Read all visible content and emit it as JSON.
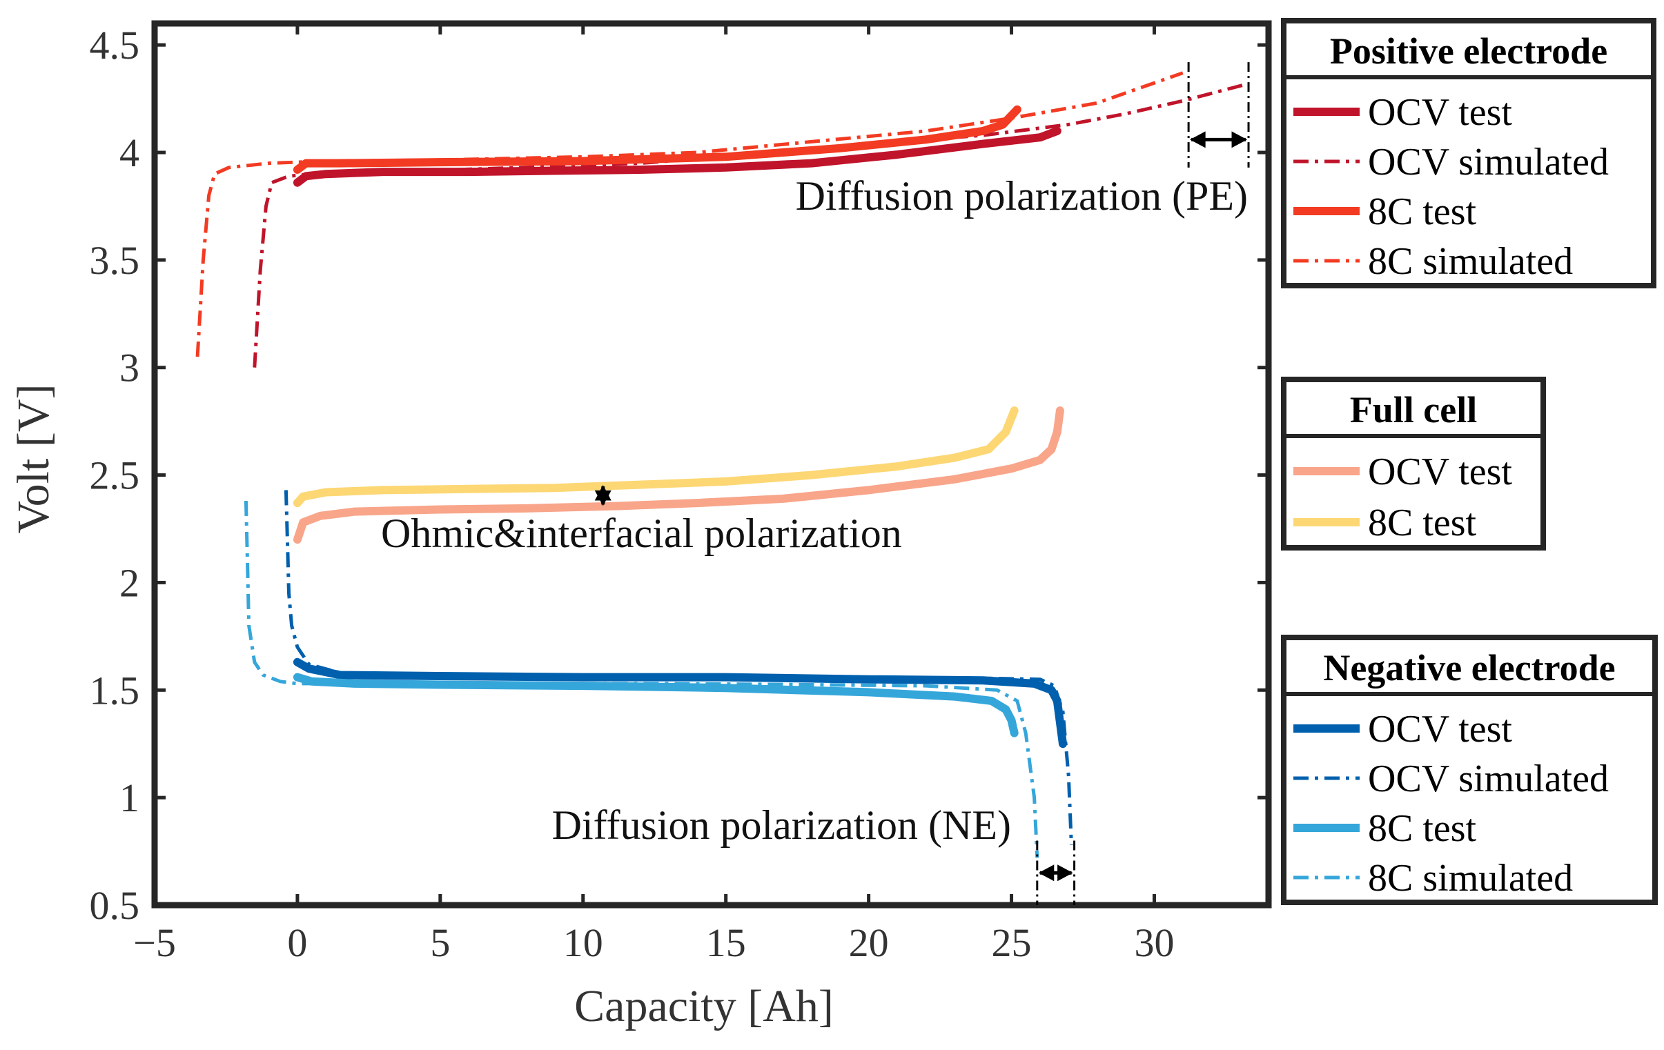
{
  "chart_data": {
    "type": "line",
    "xlabel": "Capacity [Ah]",
    "ylabel": "Volt [V]",
    "xlim": [
      -5,
      34
    ],
    "ylim": [
      0.5,
      4.6
    ],
    "xticks": [
      -5,
      0,
      5,
      10,
      15,
      20,
      25,
      30
    ],
    "xtick_labels": [
      "−5",
      "0",
      "5",
      "10",
      "15",
      "20",
      "25",
      "30"
    ],
    "yticks": [
      0.5,
      1,
      1.5,
      2,
      2.5,
      3,
      3.5,
      4,
      4.5
    ],
    "ytick_labels": [
      "0.5",
      "1",
      "1.5",
      "2",
      "2.5",
      "3",
      "3.5",
      "4",
      "4.5"
    ],
    "grid": false,
    "series": [
      {
        "name": "PE OCV test",
        "group": "pe",
        "color": "#C0142B",
        "style": "solid",
        "width": 12,
        "points": [
          [
            0,
            3.86
          ],
          [
            0.3,
            3.89
          ],
          [
            1,
            3.9
          ],
          [
            3,
            3.91
          ],
          [
            6,
            3.91
          ],
          [
            9,
            3.915
          ],
          [
            12,
            3.92
          ],
          [
            15,
            3.93
          ],
          [
            18,
            3.95
          ],
          [
            21,
            3.99
          ],
          [
            24,
            4.04
          ],
          [
            26,
            4.07
          ],
          [
            26.6,
            4.1
          ]
        ]
      },
      {
        "name": "PE OCV simulated",
        "group": "pe",
        "color": "#C0142B",
        "style": "dashdot",
        "width": 5,
        "points": [
          [
            -1.5,
            3.0
          ],
          [
            -1.3,
            3.45
          ],
          [
            -1.1,
            3.75
          ],
          [
            -0.9,
            3.86
          ],
          [
            -0.3,
            3.89
          ],
          [
            0.5,
            3.9
          ],
          [
            3,
            3.91
          ],
          [
            8,
            3.93
          ],
          [
            12,
            3.95
          ],
          [
            16,
            3.99
          ],
          [
            20,
            4.04
          ],
          [
            24,
            4.08
          ],
          [
            27,
            4.13
          ],
          [
            29,
            4.18
          ],
          [
            31,
            4.24
          ],
          [
            33.3,
            4.32
          ]
        ]
      },
      {
        "name": "PE 8C test",
        "group": "pe",
        "color": "#F23B22",
        "style": "solid",
        "width": 12,
        "points": [
          [
            0,
            3.92
          ],
          [
            0.3,
            3.95
          ],
          [
            1.5,
            3.95
          ],
          [
            5,
            3.955
          ],
          [
            10,
            3.96
          ],
          [
            15,
            3.98
          ],
          [
            19,
            4.02
          ],
          [
            22,
            4.06
          ],
          [
            24,
            4.1
          ],
          [
            24.7,
            4.13
          ],
          [
            25.2,
            4.2
          ]
        ]
      },
      {
        "name": "PE 8C simulated",
        "group": "pe",
        "color": "#F23B22",
        "style": "dashdot",
        "width": 5,
        "points": [
          [
            -3.5,
            3.05
          ],
          [
            -3.3,
            3.5
          ],
          [
            -3.1,
            3.8
          ],
          [
            -2.9,
            3.9
          ],
          [
            -2.4,
            3.93
          ],
          [
            -1,
            3.95
          ],
          [
            1,
            3.96
          ],
          [
            5,
            3.965
          ],
          [
            10,
            3.98
          ],
          [
            14,
            4.0
          ],
          [
            18,
            4.05
          ],
          [
            22,
            4.1
          ],
          [
            25,
            4.16
          ],
          [
            28,
            4.23
          ],
          [
            31,
            4.37
          ]
        ]
      },
      {
        "name": "Full OCV test",
        "group": "full",
        "color": "#F8A58A",
        "style": "solid",
        "width": 12,
        "points": [
          [
            0,
            2.2
          ],
          [
            0.2,
            2.28
          ],
          [
            0.8,
            2.31
          ],
          [
            2,
            2.33
          ],
          [
            5,
            2.34
          ],
          [
            8,
            2.345
          ],
          [
            11,
            2.355
          ],
          [
            14,
            2.37
          ],
          [
            17,
            2.39
          ],
          [
            20,
            2.43
          ],
          [
            23,
            2.48
          ],
          [
            25,
            2.53
          ],
          [
            26,
            2.57
          ],
          [
            26.4,
            2.62
          ],
          [
            26.6,
            2.7
          ],
          [
            26.7,
            2.8
          ]
        ]
      },
      {
        "name": "Full 8C test",
        "group": "full",
        "color": "#FCD774",
        "style": "solid",
        "width": 12,
        "points": [
          [
            0,
            2.37
          ],
          [
            0.2,
            2.4
          ],
          [
            1,
            2.42
          ],
          [
            3,
            2.43
          ],
          [
            6,
            2.435
          ],
          [
            9,
            2.44
          ],
          [
            12,
            2.455
          ],
          [
            15,
            2.47
          ],
          [
            18,
            2.5
          ],
          [
            21,
            2.54
          ],
          [
            23,
            2.58
          ],
          [
            24.2,
            2.62
          ],
          [
            24.8,
            2.7
          ],
          [
            25.1,
            2.8
          ]
        ]
      },
      {
        "name": "NE OCV test",
        "group": "ne",
        "color": "#0060AE",
        "style": "solid",
        "width": 12,
        "points": [
          [
            0,
            1.63
          ],
          [
            0.4,
            1.6
          ],
          [
            1.5,
            1.57
          ],
          [
            5,
            1.565
          ],
          [
            10,
            1.56
          ],
          [
            15,
            1.56
          ],
          [
            20,
            1.55
          ],
          [
            24,
            1.545
          ],
          [
            25.8,
            1.53
          ],
          [
            26.4,
            1.5
          ],
          [
            26.6,
            1.45
          ],
          [
            26.7,
            1.35
          ],
          [
            26.8,
            1.25
          ]
        ]
      },
      {
        "name": "NE OCV simulated",
        "group": "ne",
        "color": "#0060AE",
        "style": "dashdot",
        "width": 5,
        "points": [
          [
            -0.4,
            2.43
          ],
          [
            -0.35,
            2.2
          ],
          [
            -0.3,
            1.95
          ],
          [
            -0.2,
            1.8
          ],
          [
            0,
            1.7
          ],
          [
            0.4,
            1.62
          ],
          [
            1.5,
            1.58
          ],
          [
            5,
            1.57
          ],
          [
            10,
            1.565
          ],
          [
            15,
            1.56
          ],
          [
            20,
            1.56
          ],
          [
            24,
            1.555
          ],
          [
            26,
            1.55
          ],
          [
            26.5,
            1.52
          ],
          [
            26.8,
            1.4
          ],
          [
            27,
            1.1
          ],
          [
            27.1,
            0.78
          ]
        ]
      },
      {
        "name": "NE 8C test",
        "group": "ne",
        "color": "#35A6DA",
        "style": "solid",
        "width": 12,
        "points": [
          [
            0,
            1.56
          ],
          [
            0.5,
            1.54
          ],
          [
            2,
            1.53
          ],
          [
            5,
            1.525
          ],
          [
            10,
            1.52
          ],
          [
            15,
            1.51
          ],
          [
            20,
            1.49
          ],
          [
            23,
            1.47
          ],
          [
            24.3,
            1.45
          ],
          [
            24.8,
            1.41
          ],
          [
            25,
            1.36
          ],
          [
            25.1,
            1.3
          ]
        ]
      },
      {
        "name": "NE 8C simulated",
        "group": "ne",
        "color": "#35A6DA",
        "style": "dashdot",
        "width": 5,
        "points": [
          [
            -1.8,
            2.38
          ],
          [
            -1.75,
            2.1
          ],
          [
            -1.7,
            1.8
          ],
          [
            -1.5,
            1.63
          ],
          [
            -1.2,
            1.57
          ],
          [
            -0.6,
            1.54
          ],
          [
            0,
            1.53
          ],
          [
            3,
            1.53
          ],
          [
            8,
            1.53
          ],
          [
            13,
            1.53
          ],
          [
            18,
            1.525
          ],
          [
            22,
            1.52
          ],
          [
            24.5,
            1.5
          ],
          [
            25.2,
            1.45
          ],
          [
            25.5,
            1.3
          ],
          [
            25.8,
            1.0
          ],
          [
            25.9,
            0.72
          ]
        ]
      }
    ],
    "annotations": [
      {
        "text": "Diffusion polarization (PE)",
        "anchor": "end"
      },
      {
        "text": "Ohmic&interfacial polarization",
        "anchor": "start"
      },
      {
        "text": "Diffusion polarization (NE)",
        "anchor": "end"
      }
    ],
    "markers": [
      {
        "kind": "horizontal",
        "x1": 31.2,
        "x2": 33.3,
        "y": 4.06,
        "vline_top": 4.42,
        "vline_bottom": 3.93
      },
      {
        "kind": "vertical",
        "x": 10.7,
        "y1": 2.35,
        "y2": 2.46
      },
      {
        "kind": "horizontal",
        "x1": 25.9,
        "x2": 27.2,
        "y": 0.65,
        "vline_top": 0.8,
        "vline_bottom": 0.5
      }
    ],
    "legends": [
      {
        "title": "Positive electrode",
        "position": "right-top",
        "items": [
          {
            "label": "OCV test",
            "color": "#C0142B",
            "style": "solid"
          },
          {
            "label": "OCV simulated",
            "color": "#C0142B",
            "style": "dashdot"
          },
          {
            "label": "8C test",
            "color": "#F23B22",
            "style": "solid"
          },
          {
            "label": "8C simulated",
            "color": "#F23B22",
            "style": "dashdot"
          }
        ]
      },
      {
        "title": "Full cell",
        "position": "right-middle",
        "items": [
          {
            "label": "OCV test",
            "color": "#F8A58A",
            "style": "solid"
          },
          {
            "label": "8C test",
            "color": "#FCD774",
            "style": "solid"
          }
        ]
      },
      {
        "title": "Negative electrode",
        "position": "right-bottom",
        "items": [
          {
            "label": "OCV test",
            "color": "#0060AE",
            "style": "solid"
          },
          {
            "label": "OCV simulated",
            "color": "#0060AE",
            "style": "dashdot"
          },
          {
            "label": "8C test",
            "color": "#35A6DA",
            "style": "solid"
          },
          {
            "label": "8C simulated",
            "color": "#35A6DA",
            "style": "dashdot"
          }
        ]
      }
    ]
  }
}
